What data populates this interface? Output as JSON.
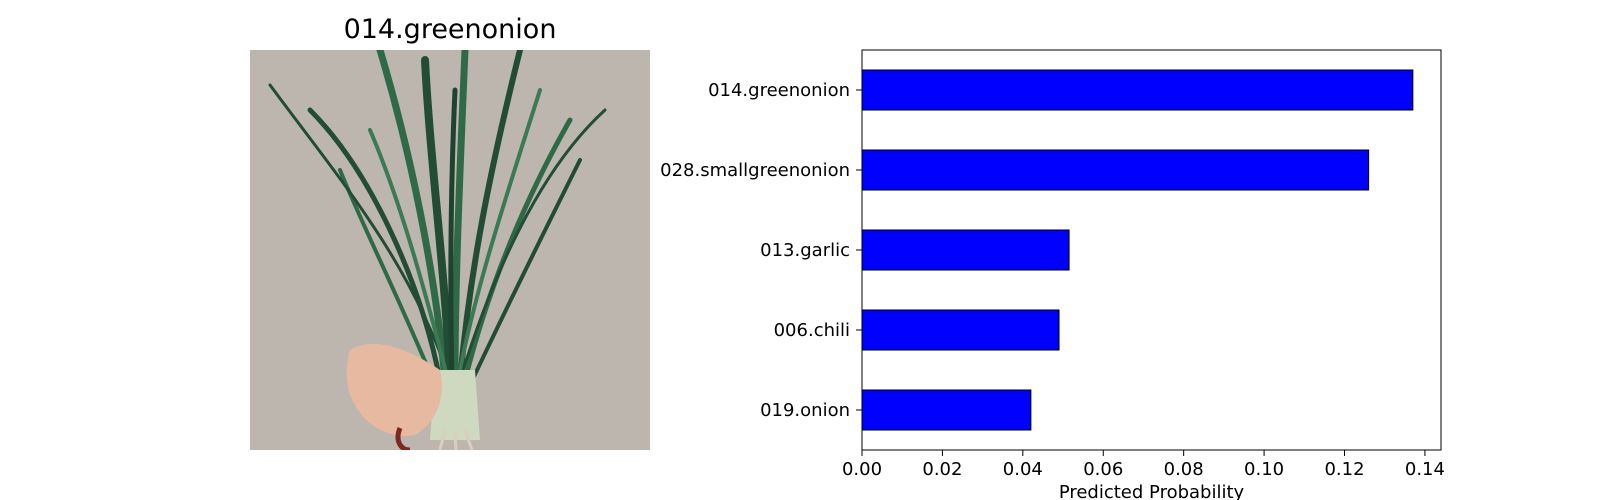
{
  "image_panel": {
    "title": "014.greenonion",
    "photo_description_icon": "green-onion-bunch-photo"
  },
  "colors": {
    "bar_fill": "#0000ff",
    "bar_edge": "#000000",
    "photo_background": "#bdb6ae",
    "leaf_dark": "#234c35",
    "leaf_mid": "#2f6a46",
    "skin": "#e7b9a0"
  },
  "chart_data": {
    "type": "bar",
    "orientation": "horizontal",
    "categories": [
      "014.greenonion",
      "028.smallgreenonion",
      "013.garlic",
      "006.chili",
      "019.onion"
    ],
    "values": [
      0.137,
      0.126,
      0.0515,
      0.049,
      0.042
    ],
    "xlabel": "Predicted Probability",
    "ylabel": "",
    "xlim": [
      0.0,
      0.144
    ],
    "xticks": [
      "0.00",
      "0.02",
      "0.04",
      "0.06",
      "0.08",
      "0.10",
      "0.12",
      "0.14"
    ],
    "grid": false
  }
}
